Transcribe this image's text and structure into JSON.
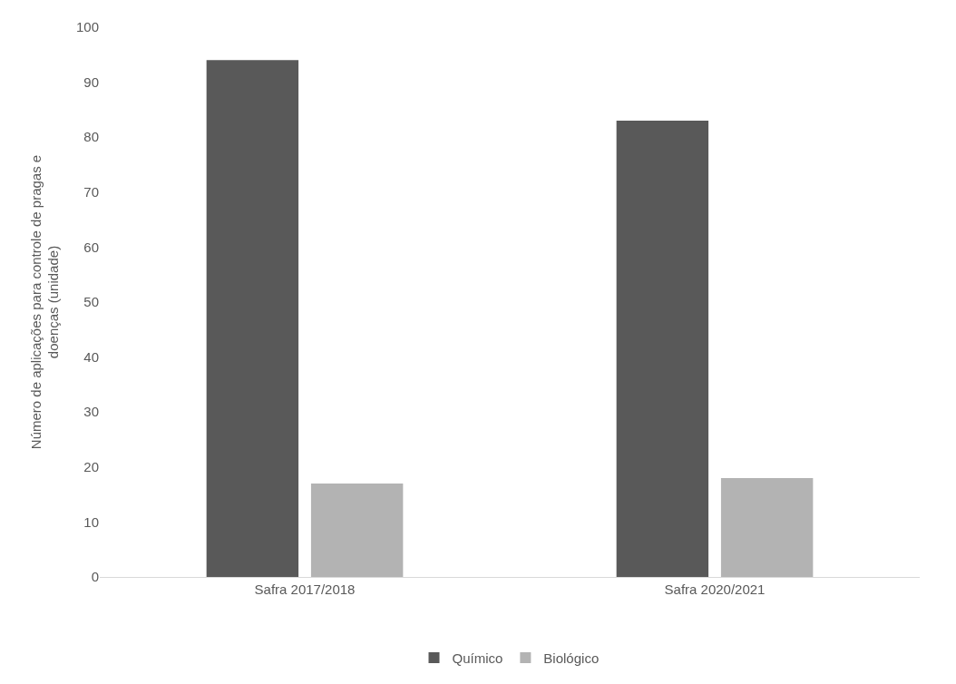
{
  "chart_data": {
    "type": "bar",
    "ylabel": "Número de aplicações para controle de pragas e doenças (unidade)",
    "categories": [
      "Safra 2017/2018",
      "Safra 2020/2021"
    ],
    "series": [
      {
        "name": "Químico",
        "color": "#595959",
        "values": [
          94,
          83
        ]
      },
      {
        "name": "Biológico",
        "color": "#b3b3b3",
        "values": [
          17,
          18
        ]
      }
    ],
    "ylim": [
      0,
      100
    ],
    "yticks": [
      0,
      10,
      20,
      30,
      40,
      50,
      60,
      70,
      80,
      90,
      100
    ],
    "grid": false,
    "legend": "bottom"
  }
}
